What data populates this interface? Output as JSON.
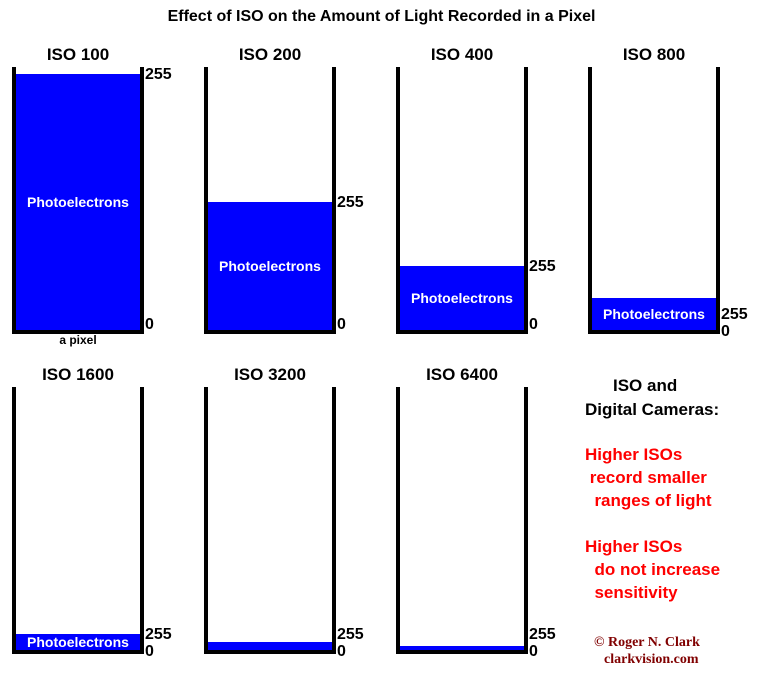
{
  "title": "Effect of ISO on the Amount of Light Recorded in a Pixel",
  "fill_label": "Photoelectrons",
  "max_label": "255",
  "min_label": "0",
  "pixel_label": "a pixel",
  "colors": {
    "fill": "#0000ff",
    "note": "#ff0000",
    "credit": "#800000"
  },
  "panels": [
    {
      "label": "ISO 100",
      "fill_fraction": 1
    },
    {
      "label": "ISO 200",
      "fill_fraction": 0.5
    },
    {
      "label": "ISO 400",
      "fill_fraction": 0.25
    },
    {
      "label": "ISO 800",
      "fill_fraction": 0.125
    },
    {
      "label": "ISO 1600",
      "fill_fraction": 0.0625
    },
    {
      "label": "ISO 3200",
      "fill_fraction": 0.03125
    },
    {
      "label": "ISO 6400",
      "fill_fraction": 0.015625
    }
  ],
  "side": {
    "heading1": "ISO and",
    "heading2": "Digital Cameras:",
    "note1": [
      "Higher ISOs",
      " record smaller",
      "  ranges of light"
    ],
    "note2": [
      "Higher ISOs",
      "  do not increase",
      "  sensitivity"
    ]
  },
  "credit": {
    "line1": "© Roger N. Clark",
    "line2": "clarkvision.com"
  }
}
